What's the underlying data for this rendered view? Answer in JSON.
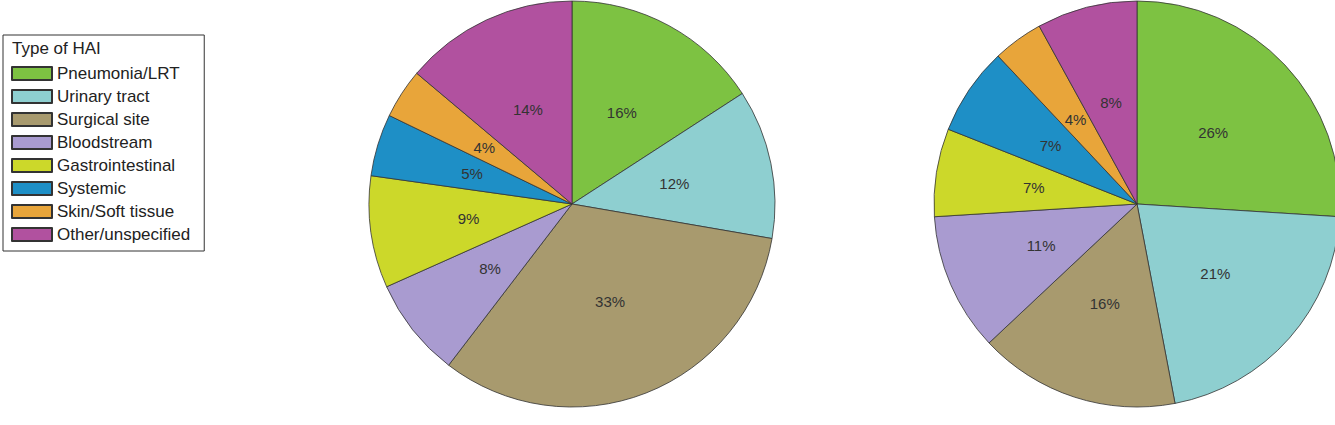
{
  "chart_data": [
    {
      "type": "pie",
      "legend_title": "Type of HAI",
      "legend": "left",
      "categories": [
        "Pneumonia/LRT",
        "Urinary tract",
        "Surgical site",
        "Bloodstream",
        "Gastrointestinal",
        "Systemic",
        "Skin/Soft tissue",
        "Other/unspecified"
      ],
      "values": [
        16,
        12,
        33,
        8,
        9,
        5,
        4,
        14
      ],
      "value_labels": [
        "16%",
        "12%",
        "33%",
        "8%",
        "9%",
        "5%",
        "4%",
        "14%"
      ],
      "colors": [
        "#7dc242",
        "#8ecfd0",
        "#a89a6e",
        "#a99bd0",
        "#ccd82a",
        "#1e8fc6",
        "#e8a53a",
        "#b1519f"
      ],
      "data_labels": true
    },
    {
      "type": "pie",
      "categories": [
        "Pneumonia/LRT",
        "Urinary tract",
        "Surgical site",
        "Bloodstream",
        "Gastrointestinal",
        "Systemic",
        "Skin/Soft tissue",
        "Other/unspecified"
      ],
      "values": [
        26,
        21,
        16,
        11,
        7,
        7,
        4,
        8
      ],
      "value_labels": [
        "26%",
        "21%",
        "16%",
        "11%",
        "7%",
        "7%",
        "4%",
        "8%"
      ],
      "colors": [
        "#7dc242",
        "#8ecfd0",
        "#a89a6e",
        "#a99bd0",
        "#ccd82a",
        "#1e8fc6",
        "#e8a53a",
        "#b1519f"
      ],
      "data_labels": true
    }
  ]
}
